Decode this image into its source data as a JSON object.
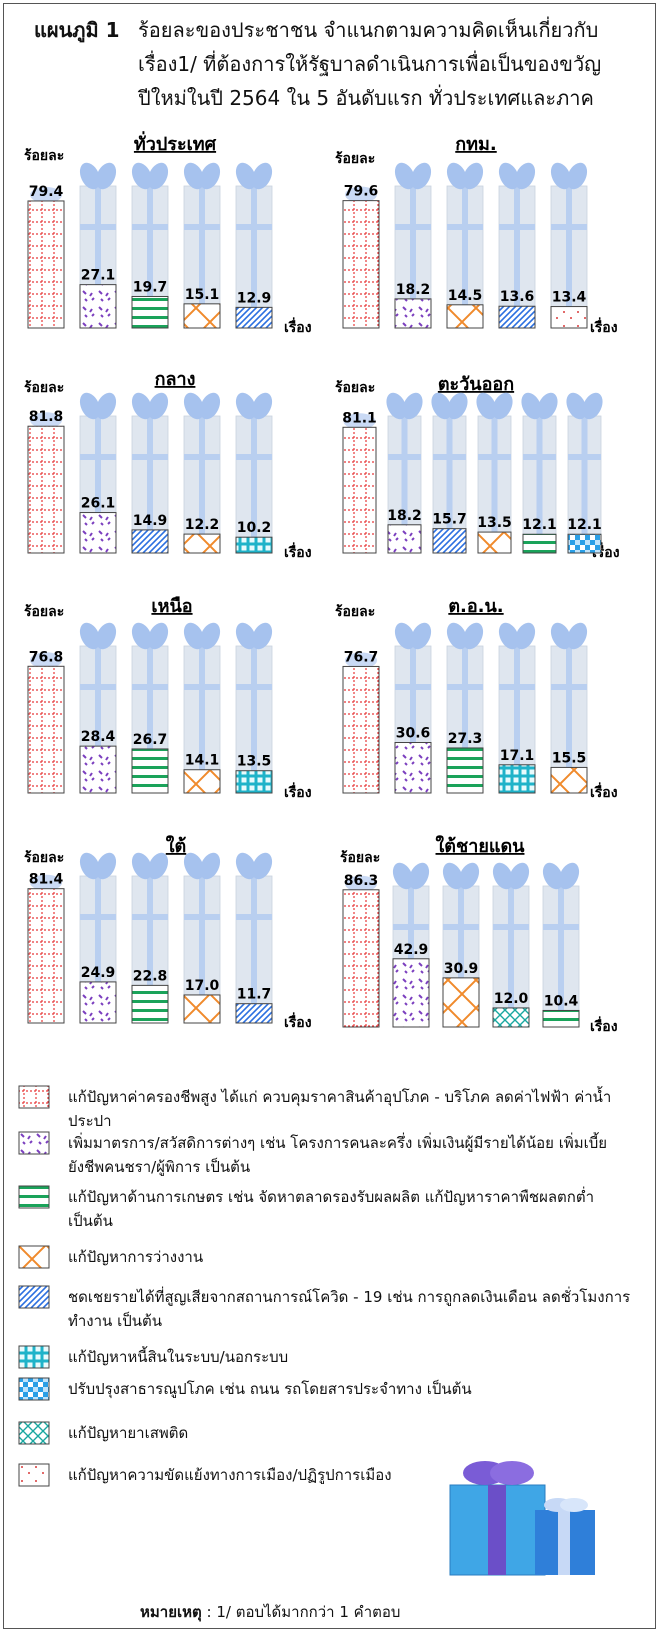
{
  "title": {
    "label": "แผนภูมิ 1",
    "line1": "ร้อยละของประชาชน  จำแนกตามความคิดเห็นเกี่ยวกับ",
    "line2": "เรื่อง1/ ที่ต้องการให้รัฐบาลดำเนินการเพื่อเป็นของขวัญ",
    "line3": "ปีใหม่ในปี 2564 ใน 5 อันดับแรก  ทั่วประเทศและภาค"
  },
  "y_unit": "ร้อยละ",
  "x_unit": "เรื่อง",
  "categories": {
    "cost": "แก้ปัญหาค่าครองชีพสูง ได้แก่ ควบคุมราคาสินค้าอุปโภค - บริโภค ลดค่าไฟฟ้า ค่าน้ำประปา",
    "welfare": "เพิ่มมาตรการ/สวัสดิการต่างๆ เช่น โครงการคนละครึ่ง เพิ่มเงินผู้มีรายได้น้อย เพิ่มเบี้ยยังชีพคนชรา/ผู้พิการ เป็นต้น",
    "agri": "แก้ปัญหาด้านการเกษตร เช่น จัดหาตลาดรองรับผลผลิต แก้ปัญหาราคาพืชผลตกต่ำ เป็นต้น",
    "unemp": "แก้ปัญหาการว่างงาน",
    "covid": "ชดเชยรายได้ที่สูญเสียจากสถานการณ์โควิด - 19 เช่น การถูกลดเงินเดือน ลดชั่วโมงการทำงาน เป็นต้น",
    "debt": "แก้ปัญหาหนี้สินในระบบ/นอกระบบ",
    "infra": "ปรับปรุงสาธารณูปโภค เช่น ถนน รถโดยสารประจำทาง เป็นต้น",
    "drug": "แก้ปัญหายาเสพติด",
    "politics": "แก้ปัญหาความขัดแย้งทางการเมือง/ปฏิรูปการเมือง"
  },
  "legend_order": [
    "cost",
    "welfare",
    "agri",
    "unemp",
    "covid",
    "debt",
    "infra",
    "drug",
    "politics"
  ],
  "colors": {
    "cost": "#e8393a",
    "welfare": "#7b3fbf",
    "agri": "#1aa35a",
    "unemp": "#f08a2c",
    "covid": "#2b6fe0",
    "debt": "#1fb3c9",
    "infra": "#2a9fe6",
    "drug": "#19a7a0",
    "politics": "#d93a3a",
    "gift_body": "#dfe6ef",
    "gift_ribbon": "#b9cff0",
    "gift_bow": "#a6c2ee"
  },
  "chart_data": [
    {
      "type": "bar",
      "title": "ทั่วประเทศ",
      "categories": [
        "cost",
        "welfare",
        "agri",
        "unemp",
        "covid"
      ],
      "values": [
        79.4,
        27.1,
        19.7,
        15.1,
        12.9
      ],
      "ylim": [
        0,
        100
      ]
    },
    {
      "type": "bar",
      "title": "กทม.",
      "categories": [
        "cost",
        "welfare",
        "unemp",
        "covid",
        "politics"
      ],
      "values": [
        79.6,
        18.2,
        14.5,
        13.6,
        13.4
      ],
      "ylim": [
        0,
        100
      ]
    },
    {
      "type": "bar",
      "title": "กลาง",
      "categories": [
        "cost",
        "welfare",
        "covid",
        "unemp",
        "debt"
      ],
      "values": [
        81.8,
        26.1,
        14.9,
        12.2,
        10.2
      ],
      "ylim": [
        0,
        100
      ]
    },
    {
      "type": "bar",
      "title": "ตะวันออก",
      "categories": [
        "cost",
        "welfare",
        "covid",
        "unemp",
        "agri",
        "infra"
      ],
      "values": [
        81.1,
        18.2,
        15.7,
        13.5,
        12.1,
        12.1
      ],
      "ylim": [
        0,
        100
      ]
    },
    {
      "type": "bar",
      "title": "เหนือ",
      "categories": [
        "cost",
        "welfare",
        "agri",
        "unemp",
        "debt"
      ],
      "values": [
        76.8,
        28.4,
        26.7,
        14.1,
        13.5
      ],
      "ylim": [
        0,
        100
      ]
    },
    {
      "type": "bar",
      "title": "ต.อ.น.",
      "categories": [
        "cost",
        "welfare",
        "agri",
        "debt",
        "unemp"
      ],
      "values": [
        76.7,
        30.6,
        27.3,
        17.1,
        15.5
      ],
      "ylim": [
        0,
        100
      ]
    },
    {
      "type": "bar",
      "title": "ใต้",
      "categories": [
        "cost",
        "welfare",
        "agri",
        "unemp",
        "covid"
      ],
      "values": [
        81.4,
        24.9,
        22.8,
        17.0,
        11.7
      ],
      "ylim": [
        0,
        100
      ]
    },
    {
      "type": "bar",
      "title": "ใต้ชายแดน",
      "categories": [
        "cost",
        "welfare",
        "unemp",
        "drug",
        "agri"
      ],
      "values": [
        86.3,
        42.9,
        30.9,
        12.0,
        10.4
      ],
      "ylim": [
        0,
        100
      ]
    }
  ],
  "note": {
    "label": "หมายเหตุ",
    "text": " :  1/ ตอบได้มากกว่า 1 คำตอบ"
  }
}
